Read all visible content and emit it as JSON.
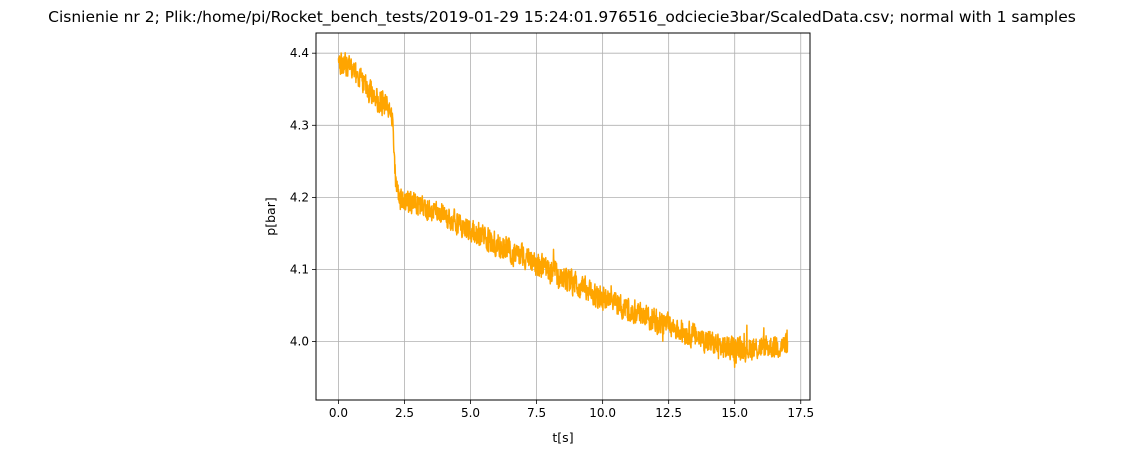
{
  "chart_data": {
    "type": "line",
    "title": "Cisnienie nr 2; Plik:/home/pi/Rocket_bench_tests/2019-01-29 15:24:01.976516_odciecie3bar/ScaledData.csv; normal with 1 samples",
    "xlabel": "t[s]",
    "ylabel": "p[bar]",
    "xlim": [
      -0.85,
      17.85
    ],
    "ylim": [
      3.919,
      4.428
    ],
    "xticks": [
      0.0,
      2.5,
      5.0,
      7.5,
      10.0,
      12.5,
      15.0,
      17.5
    ],
    "xtick_labels": [
      "0.0",
      "2.5",
      "5.0",
      "7.5",
      "10.0",
      "12.5",
      "15.0",
      "17.5"
    ],
    "yticks": [
      4.0,
      4.1,
      4.2,
      4.3,
      4.4
    ],
    "ytick_labels": [
      "4.0",
      "4.1",
      "4.2",
      "4.3",
      "4.4"
    ],
    "grid": true,
    "color": "#ffa500",
    "series": [
      {
        "x": [
          0.0,
          0.25,
          0.5,
          0.75,
          1.0,
          1.25,
          1.5,
          1.75,
          2.0,
          2.05,
          2.1,
          2.2,
          2.3,
          2.5,
          2.75,
          3.0,
          3.5,
          4.0,
          4.5,
          5.0,
          5.5,
          6.0,
          6.5,
          7.0,
          7.5,
          8.0,
          8.5,
          9.0,
          9.5,
          10.0,
          10.5,
          11.0,
          11.5,
          12.0,
          12.5,
          13.0,
          13.5,
          14.0,
          14.5,
          15.0,
          15.5,
          16.0,
          16.5,
          17.0
        ],
        "y": [
          4.385,
          4.383,
          4.378,
          4.365,
          4.355,
          4.345,
          4.335,
          4.328,
          4.318,
          4.3,
          4.26,
          4.21,
          4.198,
          4.195,
          4.192,
          4.19,
          4.182,
          4.175,
          4.165,
          4.155,
          4.145,
          4.135,
          4.125,
          4.118,
          4.108,
          4.098,
          4.088,
          4.078,
          4.068,
          4.06,
          4.052,
          4.045,
          4.038,
          4.03,
          4.022,
          4.015,
          4.008,
          4.0,
          3.993,
          3.99,
          3.99,
          3.992,
          3.993,
          3.995
        ]
      }
    ]
  }
}
